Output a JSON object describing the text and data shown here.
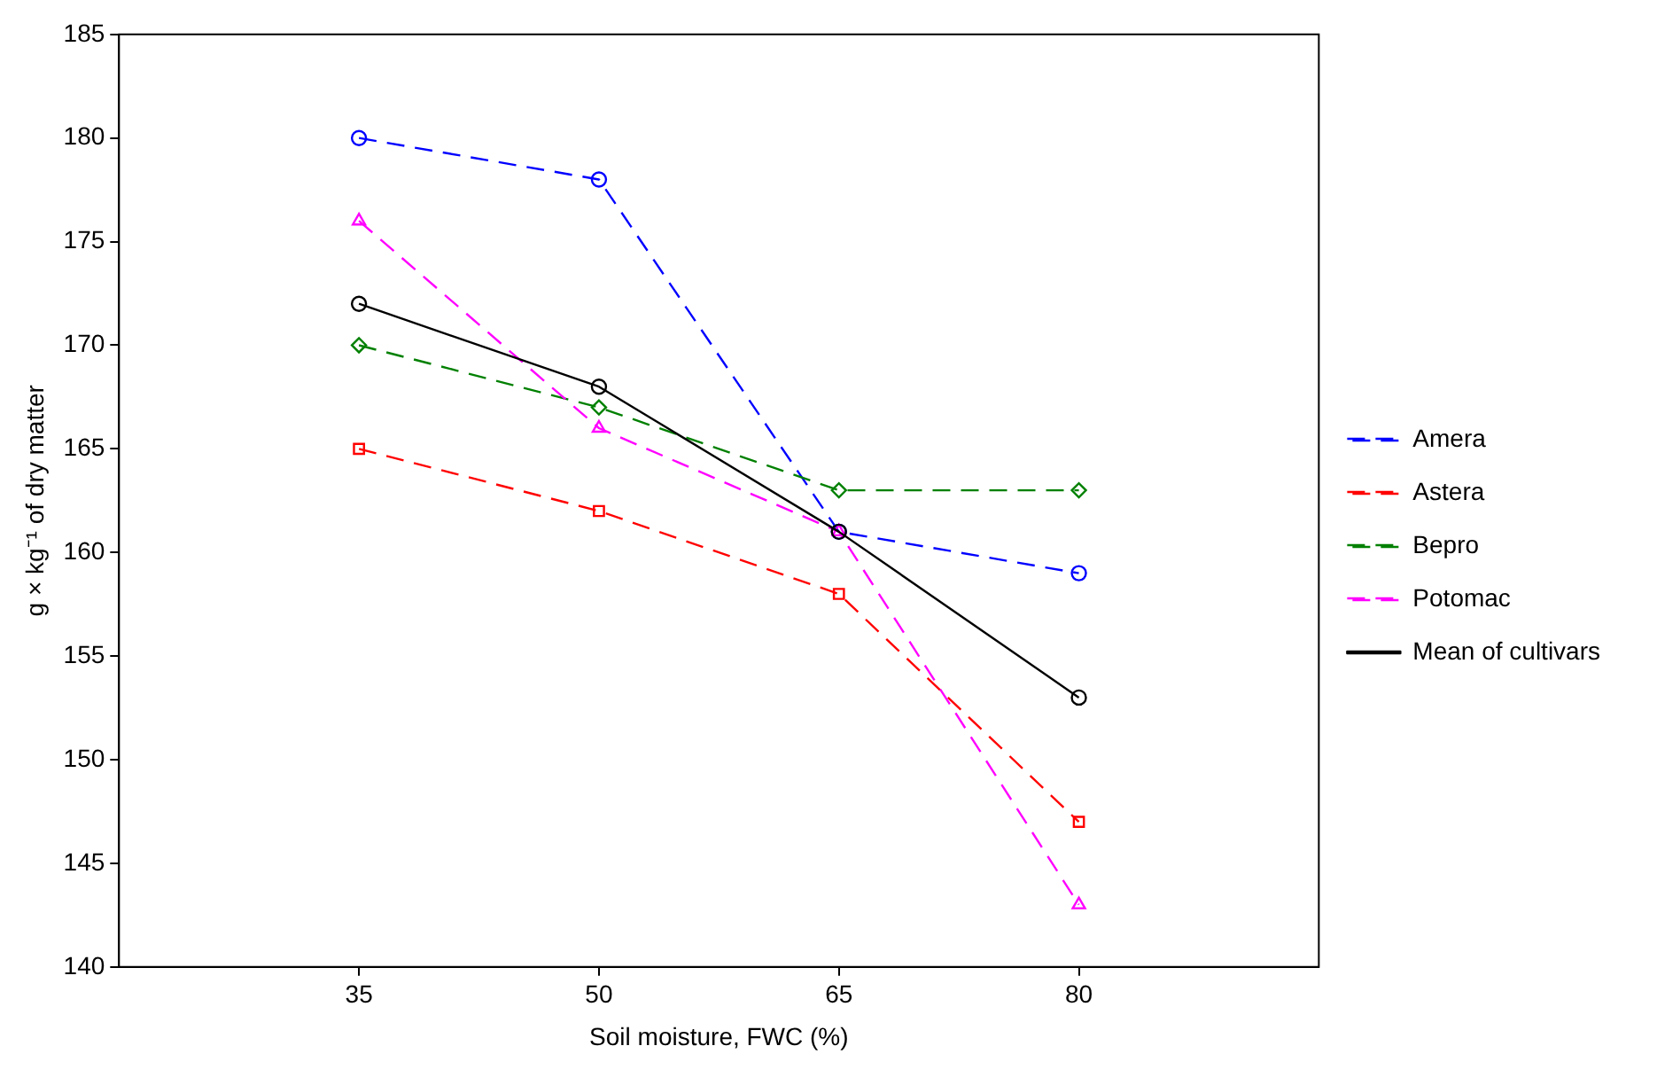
{
  "chart_data": {
    "type": "line",
    "xlabel": "Soil moisture, FWC (%)",
    "ylabel": "g × kg⁻¹ of dry matter",
    "x": [
      35,
      50,
      65,
      80
    ],
    "xlim": [
      20,
      95
    ],
    "xticks": [
      35,
      50,
      65,
      80
    ],
    "ylim": [
      140,
      185
    ],
    "yticks": [
      140,
      145,
      150,
      155,
      160,
      165,
      170,
      175,
      180,
      185
    ],
    "grid": false,
    "legend": "right",
    "series": [
      {
        "name": "Amera",
        "color": "#0000ff",
        "values": [
          180,
          178,
          161,
          159
        ],
        "marker": "circle",
        "line_style": "dashed"
      },
      {
        "name": "Astera",
        "color": "#ff0000",
        "values": [
          165,
          162,
          158,
          147
        ],
        "marker": "square",
        "line_style": "dashed"
      },
      {
        "name": "Bepro",
        "color": "#008000",
        "values": [
          170,
          167,
          163,
          163
        ],
        "marker": "diamond",
        "line_style": "dashed"
      },
      {
        "name": "Potomac",
        "color": "#ff00ff",
        "values": [
          176,
          166,
          161,
          143
        ],
        "marker": "triangle",
        "line_style": "dashed"
      },
      {
        "name": "Mean of cultivars",
        "color": "#000000",
        "values": [
          172,
          168,
          161,
          153
        ],
        "marker": "circle",
        "line_style": "solid"
      }
    ]
  }
}
